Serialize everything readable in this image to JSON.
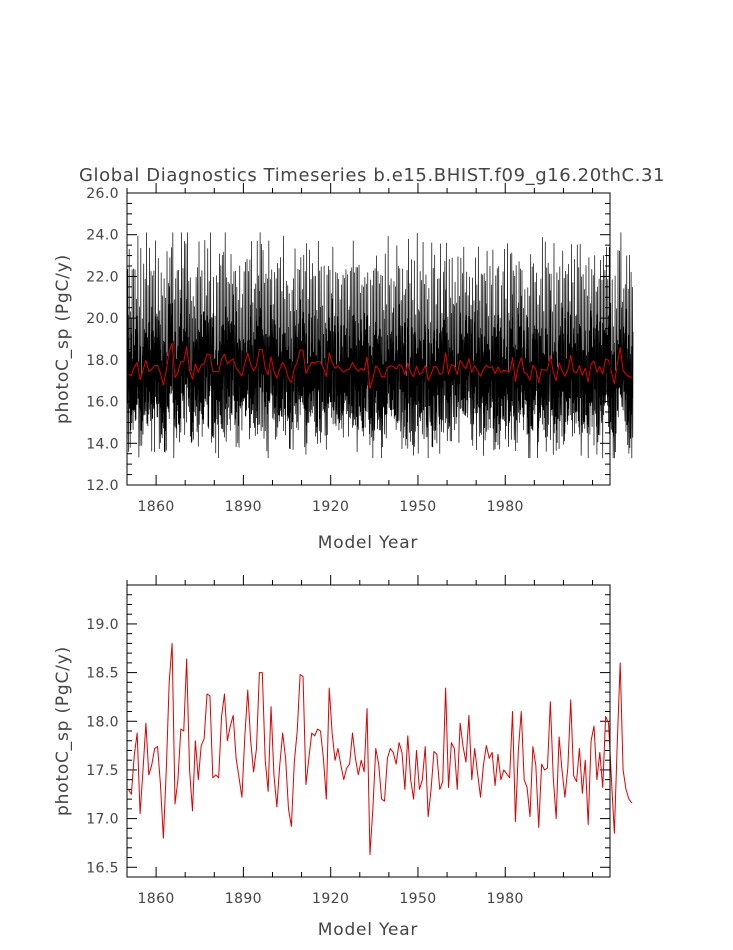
{
  "figure": {
    "title": "Global Diagnostics Timeseries b.e15.BHIST.f09_g16.20thC.31"
  },
  "chart_data": [
    {
      "type": "line",
      "ylabel": "photoC_sp (PgC/y)",
      "xlabel": "Model Year",
      "xlim": [
        1850,
        2016
      ],
      "ylim": [
        12.0,
        26.0
      ],
      "xticks": [
        1860,
        1890,
        1920,
        1950,
        1980
      ],
      "xtick_labels": [
        "1860",
        "1890",
        "1920",
        "1950",
        "1980"
      ],
      "yticks": [
        12,
        14,
        16,
        18,
        20,
        22,
        24,
        26
      ],
      "ytick_labels": [
        "12.0",
        "14.0",
        "16.0",
        "18.0",
        "20.0",
        "22.0",
        "24.0",
        "26.0"
      ],
      "series": [
        {
          "color": "#000000",
          "resolution": "monthly",
          "mean_annual_cycle": [
            17.9,
            14.9,
            16.2,
            21.3,
            15.7,
            18.8,
            14.7,
            19.4,
            16.3,
            22.7,
            15.3,
            18.6
          ],
          "range": [
            13.3,
            24.1
          ]
        },
        {
          "color": "#e00000",
          "resolution": "annual",
          "ref": "annual_mean"
        }
      ]
    },
    {
      "type": "line",
      "ylabel": "photoC_sp (PgC/y)",
      "xlabel": "Model Year",
      "xlim": [
        1850,
        2016
      ],
      "ylim": [
        16.4,
        19.4
      ],
      "xticks": [
        1860,
        1890,
        1920,
        1950,
        1980
      ],
      "xtick_labels": [
        "1860",
        "1890",
        "1920",
        "1950",
        "1980"
      ],
      "yticks": [
        16.5,
        17.0,
        17.5,
        18.0,
        18.5,
        19.0
      ],
      "ytick_labels": [
        "16.5",
        "17.0",
        "17.5",
        "18.0",
        "18.5",
        "19.0"
      ],
      "series": [
        {
          "color": "#e00000",
          "resolution": "annual",
          "x_start": 1850,
          "ref": "annual_mean"
        }
      ]
    }
  ],
  "annual_mean": [
    17.3,
    17.25,
    17.65,
    17.88,
    17.05,
    17.5,
    17.98,
    17.45,
    17.55,
    17.72,
    17.74,
    17.35,
    16.8,
    17.5,
    18.4,
    18.8,
    17.15,
    17.4,
    17.92,
    17.9,
    18.64,
    17.5,
    17.08,
    17.8,
    17.4,
    17.75,
    17.82,
    18.28,
    18.26,
    17.42,
    17.45,
    17.42,
    18.05,
    18.28,
    17.8,
    17.95,
    18.06,
    17.62,
    17.42,
    17.22,
    17.85,
    18.32,
    17.8,
    17.48,
    17.72,
    18.5,
    18.5,
    17.6,
    17.28,
    18.15,
    17.45,
    17.12,
    17.55,
    17.88,
    17.62,
    17.1,
    16.92,
    17.58,
    17.9,
    18.48,
    18.46,
    17.35,
    17.62,
    17.88,
    17.85,
    17.92,
    17.9,
    17.62,
    17.2,
    18.34,
    17.88,
    17.6,
    17.72,
    17.55,
    17.4,
    17.52,
    17.56,
    17.88,
    17.62,
    17.45,
    17.6,
    17.48,
    18.13,
    16.63,
    17.1,
    17.72,
    17.56,
    17.2,
    17.18,
    17.62,
    17.72,
    17.68,
    17.56,
    17.78,
    17.68,
    17.3,
    17.85,
    17.4,
    17.2,
    17.7,
    17.3,
    17.4,
    17.74,
    17.02,
    17.3,
    17.69,
    17.66,
    17.3,
    17.38,
    18.34,
    17.32,
    17.78,
    17.72,
    17.3,
    17.98,
    17.74,
    17.58,
    18.06,
    17.4,
    17.72,
    17.46,
    17.22,
    17.55,
    17.75,
    17.62,
    17.68,
    17.34,
    17.66,
    17.4,
    17.5,
    17.46,
    17.42,
    18.1,
    16.97,
    17.7,
    18.1,
    17.4,
    17.32,
    17.02,
    17.74,
    17.55,
    16.91,
    17.56,
    17.5,
    17.52,
    18.2,
    17.42,
    17.0,
    17.84,
    17.5,
    17.22,
    17.52,
    18.22,
    17.44,
    17.38,
    17.72,
    17.26,
    17.6,
    16.94,
    17.8,
    17.95,
    17.4,
    17.68,
    17.32,
    18.05,
    17.98,
    17.4,
    16.85,
    17.78,
    18.6,
    17.5,
    17.3,
    17.2,
    17.16
  ]
}
